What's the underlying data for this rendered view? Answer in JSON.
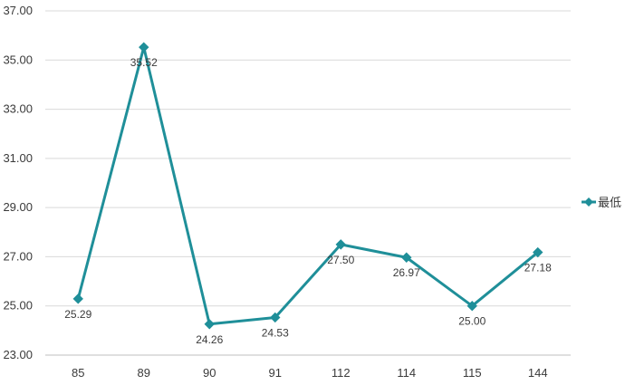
{
  "chart_data": {
    "type": "line",
    "categories": [
      "85",
      "89",
      "90",
      "91",
      "112",
      "114",
      "115",
      "144"
    ],
    "series": [
      {
        "name": "最低",
        "values": [
          25.29,
          35.52,
          24.26,
          24.53,
          27.5,
          26.97,
          25.0,
          27.18
        ],
        "data_labels": [
          "25.29",
          "35.52",
          "24.26",
          "24.53",
          "27.50",
          "26.97",
          "25.00",
          "27.18"
        ],
        "color": "#1f8f99",
        "marker": "diamond"
      }
    ],
    "y_ticks": [
      "23.00",
      "25.00",
      "27.00",
      "29.00",
      "31.00",
      "33.00",
      "35.00",
      "37.00"
    ],
    "ylim": [
      23,
      37
    ],
    "grid": true,
    "legend": "right"
  }
}
